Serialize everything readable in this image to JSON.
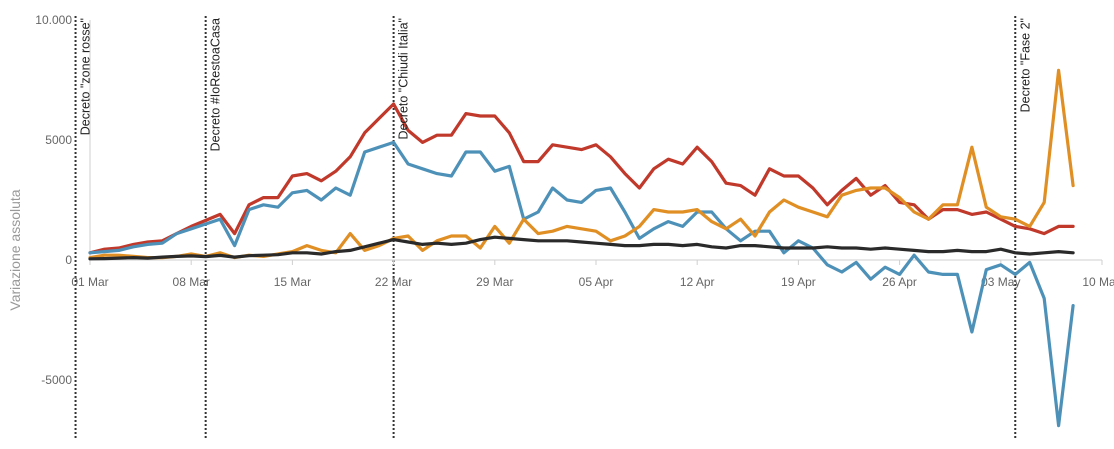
{
  "chart_data": {
    "type": "line",
    "ylabel": "Variazione assoluta",
    "xlabel": "",
    "ylim": [
      -7500,
      10000
    ],
    "yticks": [
      {
        "value": 10000,
        "label": "10.000"
      },
      {
        "value": 5000,
        "label": "5000"
      },
      {
        "value": 0,
        "label": "0"
      },
      {
        "value": -5000,
        "label": "-5000"
      }
    ],
    "x_start": "2020-03-01",
    "x_end": "2020-05-10",
    "xticks": [
      {
        "date": "2020-03-01",
        "label": "01 Mar"
      },
      {
        "date": "2020-03-08",
        "label": "08 Mar"
      },
      {
        "date": "2020-03-15",
        "label": "15 Mar"
      },
      {
        "date": "2020-03-22",
        "label": "22 Mar"
      },
      {
        "date": "2020-03-29",
        "label": "29 Mar"
      },
      {
        "date": "2020-04-05",
        "label": "05 Apr"
      },
      {
        "date": "2020-04-12",
        "label": "12 Apr"
      },
      {
        "date": "2020-04-19",
        "label": "19 Apr"
      },
      {
        "date": "2020-04-26",
        "label": "26 Apr"
      },
      {
        "date": "2020-05-03",
        "label": "03 May"
      },
      {
        "date": "2020-05-10",
        "label": "10 May"
      }
    ],
    "grid": false,
    "annotations": [
      {
        "date": "2020-02-29",
        "label": "Decreto \"zone rosse\""
      },
      {
        "date": "2020-03-09",
        "label": "Decreto #IoRestoaCasa"
      },
      {
        "date": "2020-03-22",
        "label": "Decreto \"Chiudi Italia\""
      },
      {
        "date": "2020-05-04",
        "label": "Decreto \"Fase 2\""
      }
    ],
    "series_start": "2020-03-01",
    "series": [
      {
        "color": "#c0392b",
        "values": [
          300,
          450,
          500,
          650,
          750,
          800,
          1100,
          1400,
          1650,
          1900,
          1100,
          2300,
          2600,
          2600,
          3500,
          3600,
          3300,
          3700,
          4300,
          5300,
          5900,
          6500,
          5400,
          4900,
          5200,
          5200,
          6100,
          6000,
          6000,
          5300,
          4100,
          4100,
          4800,
          4700,
          4600,
          4800,
          4300,
          3600,
          3000,
          3800,
          4200,
          4000,
          4700,
          4100,
          3200,
          3100,
          2700,
          3800,
          3500,
          3500,
          3000,
          2300,
          2900,
          3400,
          2700,
          3100,
          2400,
          2300,
          1700,
          2100,
          2100,
          1900,
          2000,
          1700,
          1400,
          1300,
          1100,
          1400,
          1400
        ]
      },
      {
        "color": "#4e91b8",
        "values": [
          300,
          350,
          400,
          550,
          650,
          700,
          1100,
          1300,
          1500,
          1700,
          600,
          2100,
          2300,
          2200,
          2800,
          2900,
          2500,
          3000,
          2700,
          4500,
          4700,
          4900,
          4000,
          3800,
          3600,
          3500,
          4500,
          4500,
          3700,
          3900,
          1700,
          2000,
          3000,
          2500,
          2400,
          2900,
          3000,
          2000,
          900,
          1300,
          1600,
          1400,
          2000,
          2000,
          1300,
          800,
          1200,
          1200,
          300,
          800,
          500,
          -200,
          -500,
          -100,
          -800,
          -300,
          -600,
          200,
          -500,
          -600,
          -600,
          -3000,
          -400,
          -200,
          -600,
          -100,
          -1600,
          -6900,
          -1900
        ]
      },
      {
        "color": "#e08f24",
        "values": [
          100,
          200,
          200,
          150,
          100,
          100,
          150,
          250,
          150,
          300,
          100,
          200,
          150,
          250,
          350,
          600,
          400,
          300,
          1100,
          400,
          600,
          900,
          1000,
          400,
          800,
          1000,
          1000,
          500,
          1400,
          700,
          1700,
          1100,
          1200,
          1400,
          1300,
          1200,
          800,
          1000,
          1400,
          2100,
          2000,
          2000,
          2100,
          1600,
          1300,
          1700,
          1000,
          2000,
          2500,
          2200,
          2000,
          1800,
          2700,
          2900,
          3000,
          3000,
          2600,
          2000,
          1700,
          2300,
          2300,
          4700,
          2200,
          1800,
          1700,
          1400,
          2400,
          7900,
          3100
        ]
      },
      {
        "color": "#2a2a2a",
        "values": [
          50,
          60,
          80,
          100,
          80,
          120,
          150,
          170,
          140,
          190,
          120,
          180,
          200,
          220,
          300,
          300,
          250,
          350,
          400,
          550,
          700,
          850,
          750,
          650,
          700,
          650,
          700,
          850,
          950,
          900,
          850,
          800,
          800,
          800,
          750,
          700,
          650,
          600,
          600,
          650,
          650,
          600,
          650,
          550,
          500,
          600,
          600,
          550,
          500,
          500,
          500,
          550,
          500,
          500,
          450,
          500,
          450,
          400,
          350,
          350,
          400,
          350,
          350,
          450,
          300,
          250,
          300,
          350,
          300
        ]
      }
    ]
  }
}
